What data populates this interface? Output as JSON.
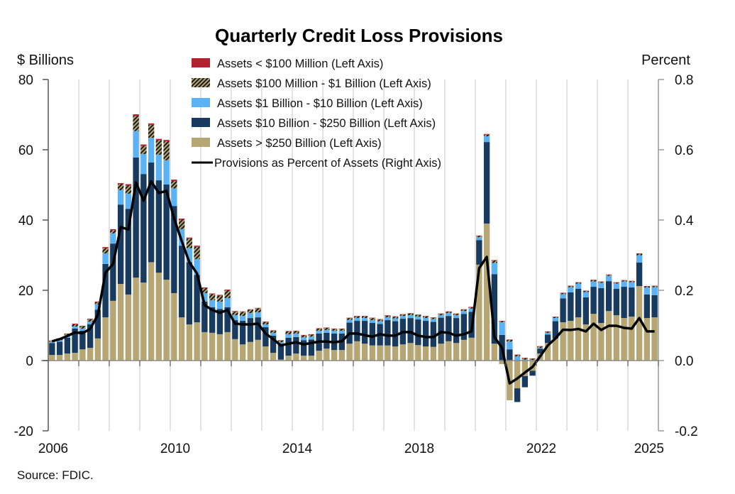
{
  "chart_data": {
    "type": "bar",
    "subtype": "stacked-bar-with-line",
    "title": "Quarterly Credit Loss Provisions",
    "ylabel_left": "$ Billions",
    "ylabel_right": "Percent",
    "ylim_left": [
      -20,
      80
    ],
    "ylim_right": [
      -0.2,
      0.8
    ],
    "yticks_left": [
      "80",
      "60",
      "40",
      "20",
      "0",
      "-20"
    ],
    "yticks_left_values": [
      80,
      60,
      40,
      20,
      0,
      -20
    ],
    "yticks_right": [
      "0.8",
      "0.6",
      "0.4",
      "0.2",
      "0.0",
      "-0.2"
    ],
    "yticks_right_values": [
      0.8,
      0.6,
      0.4,
      0.2,
      0.0,
      -0.2
    ],
    "xticks": [
      {
        "label": "2006",
        "quarter_index": 0
      },
      {
        "label": "2010",
        "quarter_index": 16
      },
      {
        "label": "2014",
        "quarter_index": 32
      },
      {
        "label": "2018",
        "quarter_index": 48
      },
      {
        "label": "2022",
        "quarter_index": 64
      },
      {
        "label": "2025",
        "quarter_index": 80
      }
    ],
    "grid": "vertical yearly gridlines",
    "legend_position": "top-center",
    "source": "Source: FDIC.",
    "quarters_start": "2006 Q1",
    "n_quarters": 80,
    "series": [
      {
        "name": "Assets < $100 Million (Left Axis)",
        "axis": "left",
        "color": "#b5202e",
        "pattern": "solid",
        "values": [
          0.1,
          0.1,
          0.1,
          0.2,
          0.2,
          0.2,
          0.2,
          0.3,
          0.3,
          0.3,
          0.4,
          0.5,
          0.4,
          0.4,
          0.4,
          0.4,
          0.4,
          0.3,
          0.3,
          0.3,
          0.2,
          0.2,
          0.2,
          0.2,
          0.2,
          0.1,
          0.1,
          0.1,
          0.1,
          0.1,
          0.1,
          0.1,
          0.1,
          0.1,
          0.1,
          0.1,
          0.1,
          0.1,
          0.1,
          0.1,
          0.1,
          0.1,
          0.1,
          0.1,
          0.1,
          0.1,
          0.1,
          0.1,
          0.1,
          0.1,
          0.1,
          0.1,
          0.1,
          0.1,
          0.1,
          0.1,
          0.1,
          0.2,
          0.1,
          0.1,
          0.1,
          0.1,
          0.1,
          0.1,
          0.1,
          0.1,
          0.1,
          0.1,
          0.1,
          0.1,
          0.1,
          0.1,
          0.1,
          0.1,
          0.1,
          0.1,
          0.1,
          0.1,
          0.1,
          0.1
        ]
      },
      {
        "name": "Assets  $100 Million - $1 Billion (Left Axis)",
        "axis": "left",
        "color": "#b5a673",
        "pattern": "hatch",
        "values": [
          0.3,
          0.4,
          0.5,
          0.6,
          0.6,
          0.6,
          0.6,
          1.5,
          0.9,
          1.7,
          2.3,
          4.3,
          2.3,
          3.7,
          4.1,
          5.4,
          2.1,
          2.7,
          2.7,
          3.5,
          1.4,
          1.7,
          1.7,
          2.2,
          1.0,
          1.2,
          1.0,
          1.2,
          0.7,
          0.6,
          0.5,
          0.8,
          0.7,
          0.6,
          0.6,
          0.6,
          0.6,
          0.5,
          0.5,
          0.5,
          0.5,
          0.5,
          0.6,
          0.5,
          0.5,
          0.5,
          0.4,
          0.5,
          0.5,
          0.5,
          0.4,
          0.4,
          0.4,
          0.4,
          0.4,
          0.4,
          0.4,
          0.5,
          0.7,
          0.3,
          0.5,
          0.4,
          0.4,
          0.3,
          0.4,
          0.3,
          0.3,
          0.3,
          0.3,
          0.3,
          0.3,
          0.4,
          0.3,
          0.3,
          0.3,
          0.3,
          0.3,
          0.4,
          0.3,
          0.3
        ]
      },
      {
        "name": "Assets  $1 Billion - $10 Billion (Left Axis)",
        "axis": "left",
        "color": "#5bb3f5",
        "pattern": "solid",
        "values": [
          0.3,
          0.4,
          0.6,
          0.6,
          0.6,
          0.8,
          1.5,
          3.0,
          2.9,
          4.1,
          4.3,
          7.5,
          5.7,
          7.0,
          7.3,
          6.9,
          5.0,
          4.7,
          4.0,
          4.5,
          2.4,
          2.0,
          2.1,
          2.6,
          1.4,
          1.4,
          1.4,
          1.4,
          0.8,
          0.8,
          0.4,
          1.0,
          1.0,
          0.8,
          0.8,
          0.8,
          0.8,
          0.8,
          0.8,
          0.8,
          0.8,
          0.8,
          0.8,
          0.8,
          0.8,
          0.8,
          0.8,
          0.8,
          0.8,
          0.8,
          0.8,
          0.7,
          0.8,
          0.8,
          0.8,
          0.9,
          0.8,
          1.6,
          3.2,
          3.6,
          2.2,
          1.2,
          0.3,
          0.2,
          0.2,
          0.5,
          0.9,
          1.2,
          1.5,
          1.5,
          1.5,
          1.5,
          1.5,
          1.5,
          1.5,
          1.5,
          1.5,
          2.1,
          2.0,
          2.3
        ]
      },
      {
        "name": "Assets  $10 Billion - $250 Billion (Left Axis)",
        "axis": "left",
        "color": "#173a5e",
        "pattern": "solid",
        "values": [
          3.4,
          3.8,
          4.5,
          6.9,
          5.3,
          6.7,
          8.2,
          15.2,
          16.3,
          22.6,
          24.4,
          34.2,
          30.9,
          28.4,
          26.3,
          27.1,
          24.8,
          20.4,
          17.7,
          13.5,
          8.7,
          7.3,
          7.2,
          7.1,
          5.4,
          6.7,
          6.8,
          6.4,
          5.5,
          4.9,
          4.5,
          5.1,
          4.7,
          4.4,
          4.6,
          4.9,
          4.5,
          4.7,
          4.7,
          6.0,
          5.8,
          6.5,
          6.4,
          6.1,
          7.2,
          7.2,
          7.3,
          7.1,
          7.3,
          7.3,
          7.1,
          7.4,
          7.2,
          7.1,
          7.4,
          7.4,
          7.0,
          23.2,
          19.8,
          7.3,
          3.2,
          -3.9,
          -3.2,
          -1.4,
          1.4,
          2.4,
          4.9,
          6.8,
          8.1,
          8.1,
          7.7,
          7.7,
          9.9,
          8.5,
          7.5,
          8.9,
          8.3,
          6.7,
          6.7,
          6.3
        ]
      },
      {
        "name": "Assets > $250 Billion (Left Axis)",
        "axis": "left",
        "color": "#b5a673",
        "pattern": "solid",
        "values": [
          1.6,
          1.6,
          2.0,
          2.2,
          3.2,
          3.6,
          6.3,
          12.3,
          17.0,
          21.8,
          18.8,
          23.6,
          22.2,
          28.0,
          25.0,
          23.0,
          19.2,
          12.3,
          10.3,
          10.9,
          8.1,
          7.9,
          7.5,
          8.1,
          6.1,
          4.6,
          5.3,
          5.9,
          4.0,
          2.2,
          0.3,
          1.4,
          2.0,
          1.4,
          1.4,
          2.8,
          3.4,
          3.0,
          3.0,
          4.8,
          5.5,
          4.8,
          4.3,
          4.3,
          4.3,
          4.0,
          4.6,
          5.0,
          4.4,
          4.0,
          3.9,
          4.8,
          5.5,
          5.0,
          5.9,
          6.5,
          27.3,
          39.0,
          4.8,
          -1.0,
          -11.3,
          -7.9,
          -4.4,
          -2.9,
          2.0,
          5.0,
          6.3,
          10.9,
          11.3,
          12.3,
          10.3,
          13.3,
          10.7,
          14.1,
          12.9,
          12.1,
          12.5,
          21.2,
          12.1,
          12.3
        ]
      },
      {
        "name": "Provisions as Percent of Assets (Right Axis)",
        "axis": "right",
        "type": "line",
        "color": "#000000",
        "values": [
          0.055,
          0.061,
          0.07,
          0.08,
          0.078,
          0.09,
          0.13,
          0.25,
          0.275,
          0.38,
          0.373,
          0.507,
          0.455,
          0.51,
          0.477,
          0.483,
          0.405,
          0.34,
          0.28,
          0.248,
          0.158,
          0.144,
          0.136,
          0.144,
          0.105,
          0.103,
          0.103,
          0.105,
          0.077,
          0.061,
          0.043,
          0.048,
          0.052,
          0.046,
          0.05,
          0.054,
          0.054,
          0.052,
          0.055,
          0.077,
          0.077,
          0.072,
          0.068,
          0.075,
          0.071,
          0.071,
          0.081,
          0.081,
          0.071,
          0.067,
          0.067,
          0.081,
          0.079,
          0.071,
          0.075,
          0.083,
          0.263,
          0.295,
          0.067,
          0.036,
          -0.065,
          -0.051,
          -0.034,
          -0.018,
          0.012,
          0.043,
          0.063,
          0.088,
          0.087,
          0.09,
          0.083,
          0.105,
          0.087,
          0.099,
          0.099,
          0.093,
          0.091,
          0.121,
          0.083,
          0.083
        ]
      }
    ]
  }
}
